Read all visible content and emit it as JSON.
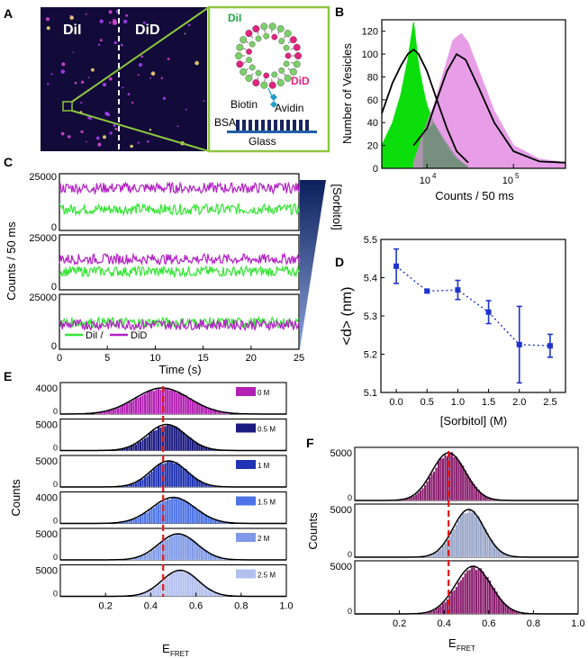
{
  "panels": {
    "A": {
      "letter": "A",
      "label_left": "DiI",
      "label_right": "DiD",
      "schematic": {
        "dil": "DiI",
        "did": "DiD",
        "biotin": "Biotin",
        "avidin": "Avidin",
        "bsa": "BSA",
        "glass": "Glass"
      },
      "colors": {
        "dil": "#1fa84a",
        "did": "#e2237f",
        "frame": "#8dc63f"
      }
    },
    "B": {
      "letter": "B",
      "ylabel": "Number of Vesicles",
      "xlabel": "Counts / 50 ms",
      "yticks": [
        "0",
        "20",
        "40",
        "60",
        "80",
        "100",
        "120"
      ],
      "xticks": [
        {
          "base": "10",
          "exp": "4"
        },
        {
          "base": "10",
          "exp": "5"
        }
      ]
    },
    "C": {
      "letter": "C",
      "ylabel": "Counts / 50 ms",
      "xlabel": "Time (s)",
      "yticks": [
        "0",
        "25000"
      ],
      "xticks": [
        "0",
        "5",
        "10",
        "15",
        "20",
        "25"
      ],
      "sorbitol_label": "[Sorbitol]",
      "legend": {
        "dil": "DiI /",
        "did": "DiD"
      },
      "colors": {
        "dil": "#33e533",
        "did": "#b21fc4"
      }
    },
    "D": {
      "letter": "D",
      "ylabel": "<d> (nm)",
      "xlabel": "[Sorbitol] (M)",
      "yticks": [
        "5.1",
        "5.2",
        "5.3",
        "5.4",
        "5.5"
      ],
      "xticks": [
        "0.0",
        "0.5",
        "1.0",
        "1.5",
        "2.0",
        "2.5"
      ]
    },
    "E": {
      "letter": "E",
      "ylabel": "Counts",
      "xlabel_main": "E",
      "xlabel_sub": "FRET",
      "xticks": [
        "0.2",
        "0.4",
        "0.6",
        "0.8",
        "1.0"
      ],
      "rows": [
        {
          "label": "0 M",
          "ytick": "4000",
          "color": "#b31fb3"
        },
        {
          "label": "0.5 M",
          "ytick": "5000",
          "color": "#1a1a80"
        },
        {
          "label": "1 M",
          "ytick": "5000",
          "color": "#1f33b3"
        },
        {
          "label": "1.5 M",
          "ytick": "4000",
          "color": "#4d73e6"
        },
        {
          "label": "2 M",
          "ytick": "5000",
          "color": "#7f99e6"
        },
        {
          "label": "2.5 M",
          "ytick": "5000",
          "color": "#b3bfee"
        }
      ]
    },
    "F": {
      "letter": "F",
      "ylabel": "Counts",
      "xlabel_main": "E",
      "xlabel_sub": "FRET",
      "xticks": [
        "0.2",
        "0.4",
        "0.6",
        "0.8",
        "1.0"
      ],
      "rows": [
        {
          "ytick": "5000",
          "color": "#8a1f6e"
        },
        {
          "ytick": "5000",
          "color": "#9aa6c8"
        },
        {
          "ytick": "5000",
          "color": "#8a1f6e"
        }
      ]
    }
  },
  "chart_data": [
    {
      "panel": "B",
      "type": "area",
      "x_scale": "log",
      "xlim": [
        3000,
        400000
      ],
      "ylim": [
        0,
        130
      ],
      "series": [
        {
          "color": "#00dd00",
          "x": [
            3000,
            4000,
            5000,
            6000,
            7000,
            8000,
            9000,
            10000,
            12000,
            15000,
            20000,
            30000
          ],
          "y": [
            20,
            40,
            65,
            95,
            128,
            90,
            70,
            55,
            40,
            25,
            10,
            2
          ]
        },
        {
          "color": "#e07ee0",
          "x": [
            7000,
            9000,
            10000,
            12000,
            15000,
            20000,
            25000,
            30000,
            40000,
            60000,
            100000,
            200000,
            400000
          ],
          "y": [
            5,
            30,
            40,
            55,
            80,
            112,
            118,
            110,
            85,
            50,
            20,
            8,
            5
          ]
        },
        {
          "color": "#000000",
          "x": [
            3000,
            4000,
            5000,
            6000,
            7000,
            8000,
            10000,
            13000,
            17000,
            22000,
            30000
          ],
          "y": [
            48,
            75,
            90,
            100,
            104,
            100,
            85,
            60,
            35,
            15,
            5
          ]
        },
        {
          "color": "#000000",
          "x": [
            7000,
            10000,
            13000,
            17000,
            22000,
            28000,
            40000,
            60000,
            100000,
            200000,
            400000
          ],
          "y": [
            20,
            35,
            60,
            85,
            100,
            95,
            70,
            40,
            15,
            6,
            5
          ]
        }
      ]
    },
    {
      "panel": "C",
      "type": "line",
      "xlim": [
        0,
        25
      ],
      "traces": [
        {
          "DiI": 10000,
          "DiD": 20000
        },
        {
          "DiI": 9000,
          "DiD": 15000
        },
        {
          "DiI": 13000,
          "DiD": 12000
        }
      ]
    },
    {
      "panel": "D",
      "type": "scatter",
      "xlabel": "[Sorbitol] (M)",
      "ylabel": "<d> (nm)",
      "ylim": [
        5.1,
        5.5
      ],
      "xlim": [
        -0.25,
        2.75
      ],
      "x": [
        0.0,
        0.5,
        1.0,
        1.5,
        2.0,
        2.5
      ],
      "y": [
        5.43,
        5.365,
        5.368,
        5.31,
        5.225,
        5.222
      ],
      "err": [
        0.045,
        0.003,
        0.025,
        0.03,
        0.1,
        0.03
      ],
      "color": "#1f33cc"
    },
    {
      "panel": "E",
      "type": "bar",
      "xlim": [
        0,
        1.0
      ],
      "series": [
        {
          "name": "0 M",
          "mean": 0.45,
          "sigma": 0.12
        },
        {
          "name": "0.5 M",
          "mean": 0.47,
          "sigma": 0.085
        },
        {
          "name": "1 M",
          "mean": 0.48,
          "sigma": 0.08
        },
        {
          "name": "1.5 M",
          "mean": 0.5,
          "sigma": 0.095
        },
        {
          "name": "2 M",
          "mean": 0.52,
          "sigma": 0.085
        },
        {
          "name": "2.5 M",
          "mean": 0.53,
          "sigma": 0.08
        }
      ],
      "reference_line": 0.455
    },
    {
      "panel": "F",
      "type": "bar",
      "xlim": [
        0,
        1.0
      ],
      "series": [
        {
          "mean": 0.42,
          "sigma": 0.075
        },
        {
          "mean": 0.51,
          "sigma": 0.07
        },
        {
          "mean": 0.53,
          "sigma": 0.08
        }
      ],
      "reference_line": 0.42
    }
  ]
}
